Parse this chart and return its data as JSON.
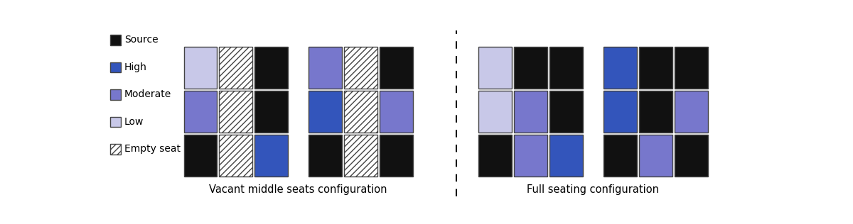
{
  "colors": {
    "source": "#111111",
    "high": "#3355bb",
    "moderate": "#7777cc",
    "low": "#c8c8e8",
    "empty_face": "#ffffff",
    "border": "#444444",
    "background": "#ffffff"
  },
  "legend_items": [
    {
      "label": "Source",
      "type": "solid",
      "color": "#111111"
    },
    {
      "label": "High",
      "type": "solid",
      "color": "#3355bb"
    },
    {
      "label": "Moderate",
      "type": "solid",
      "color": "#7777cc"
    },
    {
      "label": "Low",
      "type": "solid",
      "color": "#c8c8e8"
    },
    {
      "label": "Empty seat",
      "type": "hatch",
      "color": "#ffffff"
    }
  ],
  "vacant_grids": [
    {
      "rows": [
        [
          "low",
          "empty",
          "source"
        ],
        [
          "moderate",
          "empty",
          "source"
        ],
        [
          "source",
          "empty",
          "high"
        ]
      ]
    },
    {
      "rows": [
        [
          "moderate",
          "empty",
          "source"
        ],
        [
          "high",
          "empty",
          "moderate"
        ],
        [
          "source",
          "empty",
          "source"
        ]
      ]
    }
  ],
  "full_grids": [
    {
      "rows": [
        [
          "low",
          "source",
          "source"
        ],
        [
          "low",
          "moderate",
          "source"
        ],
        [
          "source",
          "moderate",
          "high"
        ]
      ]
    },
    {
      "rows": [
        [
          "high",
          "source",
          "source"
        ],
        [
          "high",
          "source",
          "moderate"
        ],
        [
          "source",
          "moderate",
          "source"
        ]
      ]
    }
  ],
  "vacant_label": "Vacant middle seats configuration",
  "full_label": "Full seating configuration",
  "label_fontsize": 10.5
}
